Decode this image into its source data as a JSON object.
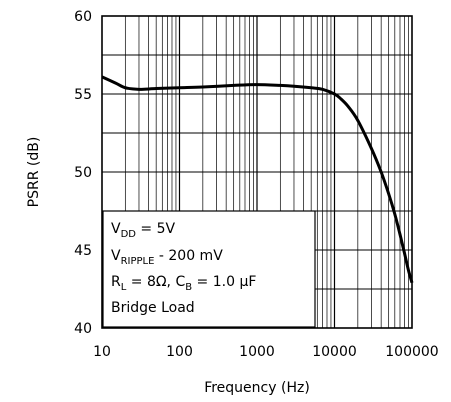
{
  "chart_data": {
    "type": "line",
    "xscale": "log",
    "xlim": [
      10,
      100000
    ],
    "ylim": [
      40,
      60
    ],
    "grid": true,
    "xlabel": "Frequency (Hz)",
    "ylabel": "PSRR (dB)",
    "x_ticks": [
      10,
      100,
      1000,
      10000,
      100000
    ],
    "x_tick_labels": [
      "10",
      "100",
      "1000",
      "10000",
      "100000"
    ],
    "y_ticks": [
      40,
      45,
      50,
      55,
      60
    ],
    "y_tick_labels": [
      "40",
      "45",
      "50",
      "55",
      "60"
    ],
    "series": [
      {
        "color": "#000000",
        "x": [
          10,
          15,
          20,
          30,
          50,
          100,
          200,
          500,
          1000,
          2000,
          3000,
          5000,
          7000,
          10000,
          12000,
          15000,
          20000,
          30000,
          40000,
          50000,
          60000,
          70000,
          80000,
          90000,
          100000
        ],
        "y": [
          56.1,
          55.7,
          55.4,
          55.3,
          55.35,
          55.4,
          55.45,
          55.55,
          55.6,
          55.55,
          55.5,
          55.4,
          55.3,
          55.0,
          54.7,
          54.2,
          53.3,
          51.5,
          50.0,
          48.6,
          47.3,
          46.0,
          44.8,
          43.7,
          42.9
        ]
      }
    ],
    "annotation": {
      "lines": [
        {
          "main": "V",
          "sub": "DD",
          "rest": " = 5V"
        },
        {
          "main": "V",
          "sub": "RIPPLE",
          "rest": " - 200 mV"
        },
        {
          "main": "R",
          "sub": "L",
          "rest": " = 8Ω, C",
          "sub2": "B",
          "rest2": " = 1.0 μF"
        },
        {
          "main": "Bridge Load",
          "sub": "",
          "rest": ""
        }
      ]
    }
  }
}
